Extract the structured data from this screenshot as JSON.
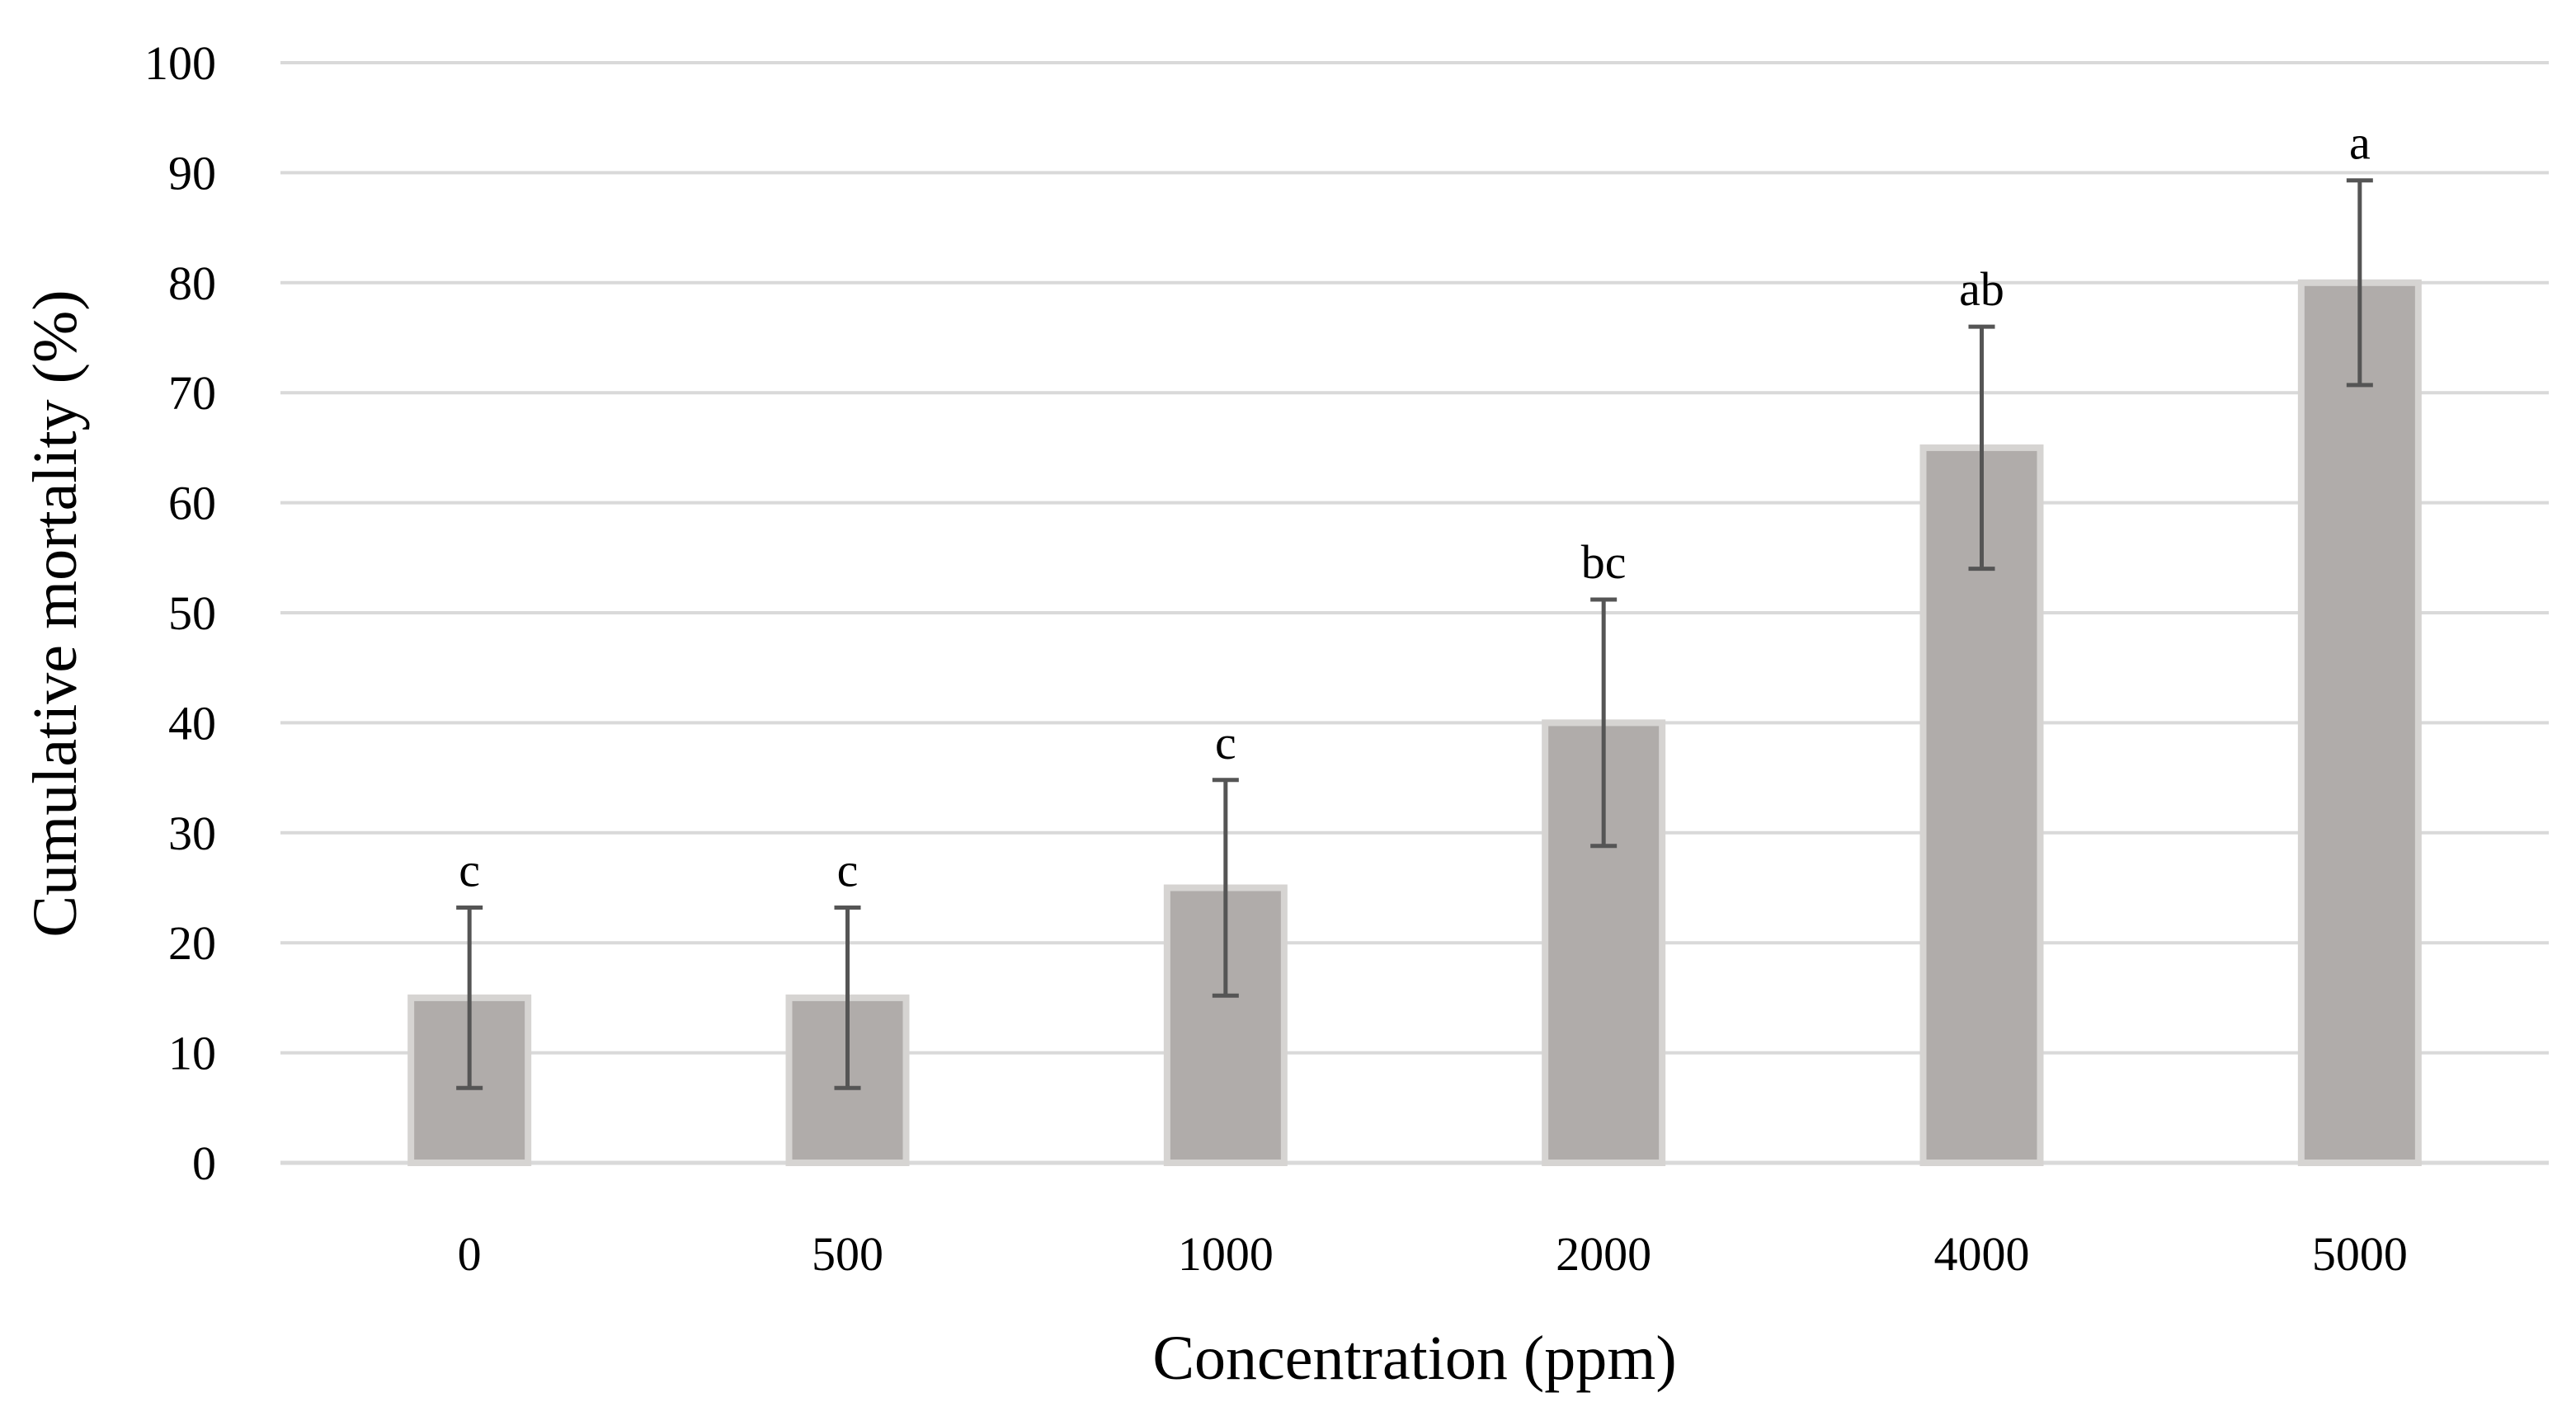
{
  "chart_data": {
    "type": "bar",
    "title": "",
    "xlabel": "Concentration (ppm)",
    "ylabel": "Cumulative mortality (%)",
    "categories": [
      "0",
      "500",
      "1000",
      "2000",
      "4000",
      "5000"
    ],
    "values": [
      15,
      15,
      25,
      40,
      65,
      80
    ],
    "error": [
      8.2,
      8.2,
      9.8,
      11.2,
      11,
      9.3
    ],
    "significance_labels": [
      "c",
      "c",
      "c",
      "bc",
      "ab",
      "a"
    ],
    "ylim": [
      0,
      100
    ],
    "yticks": [
      0,
      10,
      20,
      30,
      40,
      50,
      60,
      70,
      80,
      90,
      100
    ],
    "grid": true,
    "legend": "none",
    "colors": {
      "bar_fill": "#b0acaa",
      "bar_stroke": "#d6d4d2",
      "error_bar": "#555555",
      "grid": "#d9d9d9"
    }
  }
}
